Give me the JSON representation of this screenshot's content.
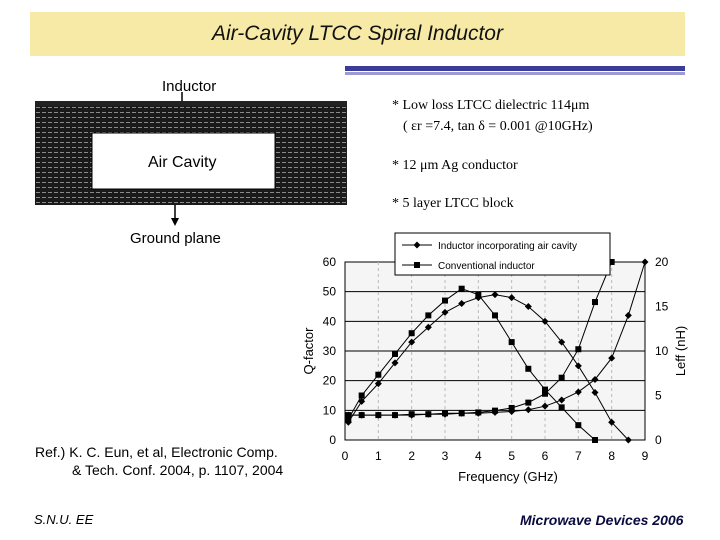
{
  "slide": {
    "title": "Air-Cavity LTCC Spiral Inductor",
    "bullets": [
      "* Low loss LTCC dielectric 114μm",
      "( εr =7.4, tan δ = 0.001 @10GHz)",
      "* 12 μm Ag conductor",
      "* 5 layer LTCC block"
    ],
    "reference_line1": "Ref.)  K. C. Eun, et al, Electronic Comp.",
    "reference_line2": "& Tech. Conf. 2004, p. 1107, 2004",
    "footer_left": "S.N.U. EE",
    "footer_right": "Microwave Devices 2006"
  },
  "diagram": {
    "label_inductor": "Inductor",
    "label_air_cavity": "Air Cavity",
    "label_ground": "Ground plane"
  },
  "chart_data": {
    "type": "line",
    "xlabel": "Frequency (GHz)",
    "ylabel_left": "Q-factor",
    "ylabel_right": "Leff (nH)",
    "x_ticks": [
      "0",
      "1",
      "2",
      "3",
      "4",
      "5",
      "6",
      "7",
      "8",
      "9"
    ],
    "y_left_ticks": [
      "0",
      "10",
      "20",
      "30",
      "40",
      "50",
      "60"
    ],
    "y_right_ticks": [
      "0",
      "5",
      "10",
      "15",
      "20"
    ],
    "xlim": [
      0,
      9
    ],
    "ylim_left": [
      0,
      60
    ],
    "ylim_right": [
      0,
      20
    ],
    "legend": [
      "Inductor incorporating air cavity",
      "Conventional inductor"
    ],
    "series": [
      {
        "name": "Inductor incorporating air cavity",
        "axis": "left",
        "marker": "diamond",
        "x": [
          0.1,
          0.5,
          1,
          1.5,
          2,
          2.5,
          3,
          3.5,
          4,
          4.5,
          5,
          5.5,
          6,
          6.5,
          7,
          7.5,
          8,
          8.5
        ],
        "y": [
          6,
          13,
          19,
          26,
          33,
          38,
          43,
          46,
          48,
          49,
          48,
          45,
          40,
          33,
          25,
          16,
          6,
          0
        ]
      },
      {
        "name": "Conventional inductor",
        "axis": "left",
        "marker": "square",
        "x": [
          0.1,
          0.5,
          1,
          1.5,
          2,
          2.5,
          3,
          3.5,
          4,
          4.5,
          5,
          5.5,
          6,
          6.5,
          7,
          7.5
        ],
        "y": [
          7,
          15,
          22,
          29,
          36,
          42,
          47,
          51,
          49,
          42,
          33,
          24,
          17,
          11,
          5,
          0
        ]
      },
      {
        "name": "Inductor incorporating air cavity",
        "axis": "right",
        "marker": "diamond",
        "x": [
          0.1,
          0.5,
          1,
          1.5,
          2,
          2.5,
          3,
          3.5,
          4,
          4.5,
          5,
          5.5,
          6,
          6.5,
          7,
          7.5,
          8,
          8.5,
          9
        ],
        "y": [
          2.8,
          2.8,
          2.8,
          2.8,
          2.8,
          2.9,
          2.9,
          3.0,
          3.0,
          3.1,
          3.2,
          3.4,
          3.8,
          4.5,
          5.4,
          6.8,
          9.2,
          14,
          20
        ]
      },
      {
        "name": "Conventional inductor",
        "axis": "right",
        "marker": "square",
        "x": [
          0.1,
          0.5,
          1,
          1.5,
          2,
          2.5,
          3,
          3.5,
          4,
          4.5,
          5,
          5.5,
          6,
          6.5,
          7,
          7.5,
          8
        ],
        "y": [
          2.8,
          2.8,
          2.8,
          2.8,
          2.9,
          2.9,
          3.0,
          3.0,
          3.1,
          3.3,
          3.6,
          4.2,
          5.2,
          7.0,
          10.2,
          15.5,
          20
        ]
      }
    ]
  }
}
